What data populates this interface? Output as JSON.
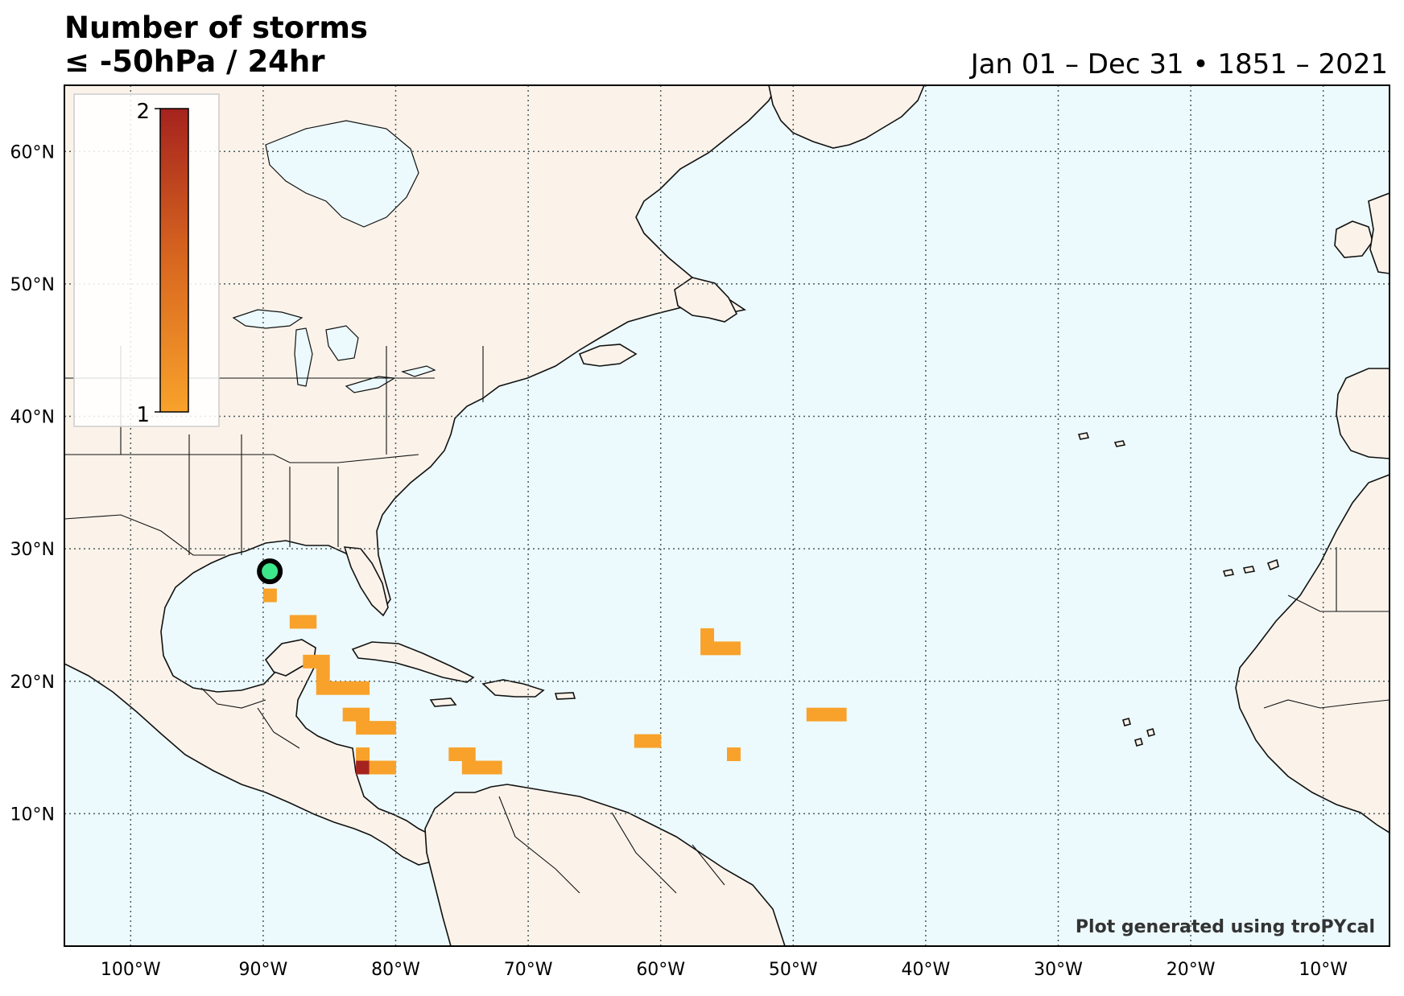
{
  "title": {
    "line1": "Number of storms",
    "line2": "≤ -50hPa / 24hr"
  },
  "date_range": "Jan 01 – Dec 31 • 1851 – 2021",
  "credit": "Plot generated using troPYcal",
  "colors": {
    "ocean": "#ecfafd",
    "land": "#fbf3ea",
    "low": "#f8a22b",
    "high": "#a5231e",
    "marker": "#3de88a"
  },
  "chart_data": {
    "type": "heatmap",
    "map_extent": {
      "lon": [
        -105,
        -5
      ],
      "lat": [
        0,
        65
      ]
    },
    "grid": true,
    "lon_ticks": [
      {
        "value": -100,
        "label": "100°W"
      },
      {
        "value": -90,
        "label": "90°W"
      },
      {
        "value": -80,
        "label": "80°W"
      },
      {
        "value": -70,
        "label": "70°W"
      },
      {
        "value": -60,
        "label": "60°W"
      },
      {
        "value": -50,
        "label": "50°W"
      },
      {
        "value": -40,
        "label": "40°W"
      },
      {
        "value": -30,
        "label": "30°W"
      },
      {
        "value": -20,
        "label": "20°W"
      },
      {
        "value": -10,
        "label": "10°W"
      }
    ],
    "lat_ticks": [
      {
        "value": 10,
        "label": "10°N"
      },
      {
        "value": 20,
        "label": "20°N"
      },
      {
        "value": 30,
        "label": "30°N"
      },
      {
        "value": 40,
        "label": "40°N"
      },
      {
        "value": 50,
        "label": "50°N"
      },
      {
        "value": 60,
        "label": "60°N"
      }
    ],
    "colorbar": {
      "min": 1,
      "max": 2,
      "min_label": "1",
      "max_label": "2",
      "placement": "top-left"
    },
    "cells": [
      {
        "lon": -89.5,
        "lat": 26.5,
        "value": 1
      },
      {
        "lon": -87.5,
        "lat": 24.5,
        "value": 1
      },
      {
        "lon": -86.5,
        "lat": 24.5,
        "value": 1
      },
      {
        "lon": -86.5,
        "lat": 21.5,
        "value": 1
      },
      {
        "lon": -85.5,
        "lat": 21.5,
        "value": 1
      },
      {
        "lon": -85.5,
        "lat": 20.5,
        "value": 1
      },
      {
        "lon": -85.5,
        "lat": 19.5,
        "value": 1
      },
      {
        "lon": -84.5,
        "lat": 19.5,
        "value": 1
      },
      {
        "lon": -83.5,
        "lat": 19.5,
        "value": 1
      },
      {
        "lon": -82.5,
        "lat": 19.5,
        "value": 1
      },
      {
        "lon": -83.5,
        "lat": 17.5,
        "value": 1
      },
      {
        "lon": -82.5,
        "lat": 17.5,
        "value": 1
      },
      {
        "lon": -82.5,
        "lat": 16.5,
        "value": 1
      },
      {
        "lon": -81.5,
        "lat": 16.5,
        "value": 1
      },
      {
        "lon": -80.5,
        "lat": 16.5,
        "value": 1
      },
      {
        "lon": -82.5,
        "lat": 14.5,
        "value": 1
      },
      {
        "lon": -82.5,
        "lat": 13.5,
        "value": 2
      },
      {
        "lon": -81.5,
        "lat": 13.5,
        "value": 1
      },
      {
        "lon": -80.5,
        "lat": 13.5,
        "value": 1
      },
      {
        "lon": -75.5,
        "lat": 14.5,
        "value": 1
      },
      {
        "lon": -74.5,
        "lat": 14.5,
        "value": 1
      },
      {
        "lon": -74.5,
        "lat": 13.5,
        "value": 1
      },
      {
        "lon": -73.5,
        "lat": 13.5,
        "value": 1
      },
      {
        "lon": -72.5,
        "lat": 13.5,
        "value": 1
      },
      {
        "lon": -61.5,
        "lat": 15.5,
        "value": 1
      },
      {
        "lon": -60.5,
        "lat": 15.5,
        "value": 1
      },
      {
        "lon": -56.5,
        "lat": 23.5,
        "value": 1
      },
      {
        "lon": -56.5,
        "lat": 22.5,
        "value": 1
      },
      {
        "lon": -55.5,
        "lat": 22.5,
        "value": 1
      },
      {
        "lon": -54.5,
        "lat": 22.5,
        "value": 1
      },
      {
        "lon": -54.5,
        "lat": 14.5,
        "value": 1
      },
      {
        "lon": -48.5,
        "lat": 17.5,
        "value": 1
      },
      {
        "lon": -47.5,
        "lat": 17.5,
        "value": 1
      },
      {
        "lon": -46.5,
        "lat": 17.5,
        "value": 1
      }
    ],
    "marker": {
      "lon": -89.5,
      "lat": 28.3
    }
  }
}
